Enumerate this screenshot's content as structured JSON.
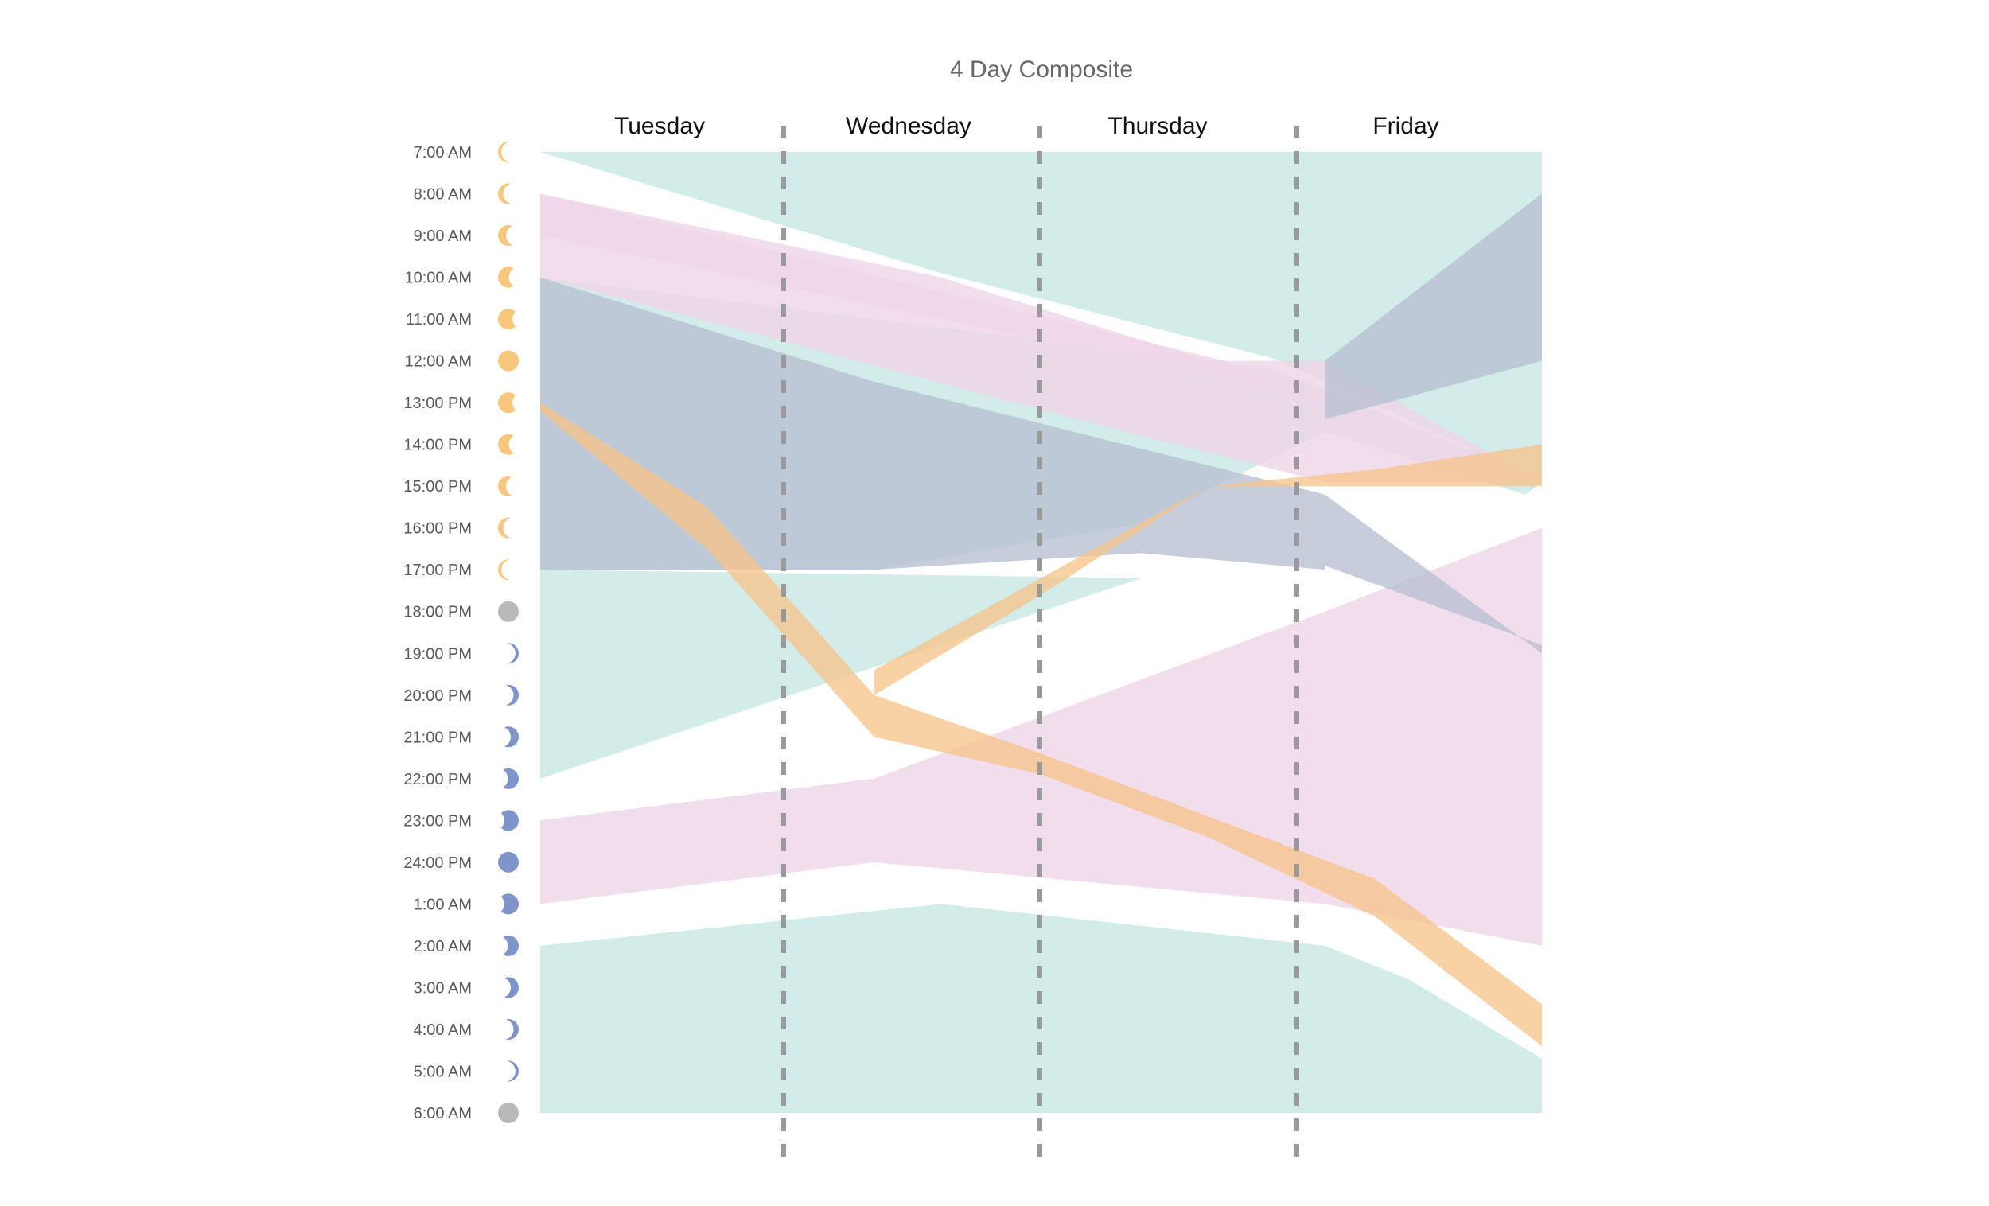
{
  "chart_data": {
    "type": "area",
    "title": "4 Day Composite",
    "days": [
      "Tuesday",
      "Wednesday",
      "Thursday",
      "Friday"
    ],
    "time_slots": [
      {
        "label": "7:00 AM",
        "phase": "day",
        "fill": 0.05
      },
      {
        "label": "8:00 AM",
        "phase": "day",
        "fill": 0.15
      },
      {
        "label": "9:00 AM",
        "phase": "day",
        "fill": 0.3
      },
      {
        "label": "10:00 AM",
        "phase": "day",
        "fill": 0.45
      },
      {
        "label": "11:00 AM",
        "phase": "day",
        "fill": 0.65
      },
      {
        "label": "12:00 AM",
        "phase": "day",
        "fill": 1.0
      },
      {
        "label": "13:00 PM",
        "phase": "day",
        "fill": 0.65
      },
      {
        "label": "14:00 PM",
        "phase": "day",
        "fill": 0.45
      },
      {
        "label": "15:00 PM",
        "phase": "day",
        "fill": 0.3
      },
      {
        "label": "16:00 PM",
        "phase": "day",
        "fill": 0.15
      },
      {
        "label": "17:00 PM",
        "phase": "day",
        "fill": 0.05
      },
      {
        "label": "18:00 PM",
        "phase": "transition",
        "fill": 1.0
      },
      {
        "label": "19:00 PM",
        "phase": "night",
        "fill": 0.05
      },
      {
        "label": "20:00 PM",
        "phase": "night",
        "fill": 0.15
      },
      {
        "label": "21:00 PM",
        "phase": "night",
        "fill": 0.3
      },
      {
        "label": "22:00 PM",
        "phase": "night",
        "fill": 0.45
      },
      {
        "label": "23:00 PM",
        "phase": "night",
        "fill": 0.65
      },
      {
        "label": "24:00 PM",
        "phase": "night",
        "fill": 1.0
      },
      {
        "label": "1:00 AM",
        "phase": "night",
        "fill": 0.65
      },
      {
        "label": "2:00 AM",
        "phase": "night",
        "fill": 0.45
      },
      {
        "label": "3:00 AM",
        "phase": "night",
        "fill": 0.3
      },
      {
        "label": "4:00 AM",
        "phase": "night",
        "fill": 0.15
      },
      {
        "label": "5:00 AM",
        "phase": "night",
        "fill": 0.05
      },
      {
        "label": "6:00 AM",
        "phase": "transition",
        "fill": 1.0
      }
    ],
    "x_range": [
      0,
      3
    ],
    "y_range_hours": [
      0,
      23
    ],
    "bands": [
      {
        "name": "teal-band-top",
        "color": "#c9e9e5",
        "opacity": 0.85,
        "points": [
          [
            0,
            0
          ],
          [
            1.4,
            0
          ],
          [
            3,
            0
          ],
          [
            3,
            1
          ],
          [
            3,
            5
          ],
          [
            3,
            7.9
          ],
          [
            2.2,
            4.95
          ],
          [
            1.2,
            2.9
          ],
          [
            0,
            0
          ]
        ]
      },
      {
        "name": "teal-band-middle",
        "color": "#c9e9e5",
        "opacity": 0.85,
        "points": [
          [
            0,
            10
          ],
          [
            1,
            10
          ],
          [
            1.8,
            8.9
          ],
          [
            2.35,
            6.7
          ],
          [
            2.95,
            8.2
          ],
          [
            3,
            7.9
          ],
          [
            3,
            7.75
          ],
          [
            2.9,
            7.5
          ],
          [
            2.2,
            5.2
          ],
          [
            0,
            3
          ],
          [
            0,
            10
          ],
          [
            0,
            15
          ]
        ]
      },
      {
        "name": "teal-band-middle-lower",
        "color": "#c9e9e5",
        "opacity": 0.85,
        "points": [
          [
            0,
            10
          ],
          [
            1.8,
            10.2
          ],
          [
            0,
            15
          ]
        ]
      },
      {
        "name": "teal-band-bottom",
        "color": "#c9e9e5",
        "opacity": 0.85,
        "points": [
          [
            0,
            19
          ],
          [
            1.2,
            18
          ],
          [
            2.35,
            19
          ],
          [
            2.6,
            19.8
          ],
          [
            3,
            21.7
          ],
          [
            3,
            23
          ],
          [
            0,
            23
          ]
        ]
      },
      {
        "name": "pink-band-top",
        "color": "#efd5e8",
        "opacity": 0.82,
        "points": [
          [
            0,
            1
          ],
          [
            2.05,
            5
          ],
          [
            3,
            7.9
          ],
          [
            3,
            7.75
          ],
          [
            2.2,
            5.7
          ],
          [
            1.2,
            4
          ],
          [
            0,
            2
          ],
          [
            0,
            3
          ]
        ]
      },
      {
        "name": "pink-band-top-fill",
        "color": "#efd5e8",
        "opacity": 0.82,
        "points": [
          [
            0,
            1
          ],
          [
            1.2,
            3
          ],
          [
            2.0,
            5.0
          ],
          [
            2.35,
            5.0
          ],
          [
            3,
            7.9
          ],
          [
            2.35,
            7.9
          ],
          [
            1.8,
            6.8
          ],
          [
            0,
            3
          ]
        ]
      },
      {
        "name": "pink-band-bottom",
        "color": "#efd5e8",
        "opacity": 0.82,
        "points": [
          [
            0,
            16
          ],
          [
            1,
            15
          ],
          [
            2.35,
            11
          ],
          [
            3,
            9
          ],
          [
            3,
            19
          ],
          [
            2.35,
            18
          ],
          [
            1,
            17
          ],
          [
            0,
            18
          ]
        ]
      },
      {
        "name": "slate-band",
        "color": "#b9c0d2",
        "opacity": 0.8,
        "points": [
          [
            0,
            3
          ],
          [
            1,
            5.5
          ],
          [
            2.35,
            8.2
          ],
          [
            3,
            12
          ],
          [
            3,
            11.8
          ],
          [
            2.35,
            9.9
          ],
          [
            2.35,
            10
          ],
          [
            1.8,
            9.6
          ],
          [
            1,
            10
          ],
          [
            0,
            10
          ]
        ]
      },
      {
        "name": "slate-band-right",
        "color": "#b9c0d2",
        "opacity": 0.8,
        "points": [
          [
            2.35,
            5.0
          ],
          [
            3,
            1
          ],
          [
            3,
            5
          ],
          [
            2.35,
            6.4
          ]
        ]
      },
      {
        "name": "orange-band-lower",
        "color": "#f6c48c",
        "opacity": 0.78,
        "points": [
          [
            0,
            6
          ],
          [
            0.5,
            8.5
          ],
          [
            1,
            13
          ],
          [
            1.5,
            14.4
          ],
          [
            2.0,
            15.9
          ],
          [
            2.5,
            17.4
          ],
          [
            3,
            20.4
          ],
          [
            3,
            21.4
          ],
          [
            2.5,
            18.3
          ],
          [
            2.0,
            16.4
          ],
          [
            1.5,
            14.9
          ],
          [
            1,
            14.0
          ],
          [
            0.5,
            9.5
          ],
          [
            0,
            6.2
          ]
        ]
      },
      {
        "name": "orange-band-upper",
        "color": "#f6c48c",
        "opacity": 0.78,
        "points": [
          [
            1,
            12.4
          ],
          [
            1.5,
            10.2
          ],
          [
            2.0,
            8.0
          ],
          [
            2.5,
            7.6
          ],
          [
            3,
            7.0
          ],
          [
            3,
            8.0
          ],
          [
            2.5,
            8.0
          ],
          [
            2.0,
            8.0
          ],
          [
            1.5,
            10.6
          ],
          [
            1,
            13.0
          ]
        ]
      }
    ]
  },
  "moon_colors": {
    "day": "#f8c77e",
    "night": "#7f95c9",
    "transition": "#b9b9b9"
  }
}
